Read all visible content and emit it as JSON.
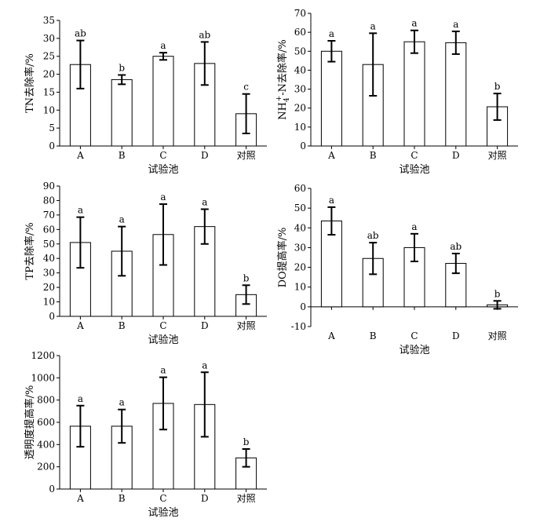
{
  "chart_data": [
    {
      "type": "bar",
      "title": "",
      "xlabel": "试验池",
      "ylabel": "TN去除率/%",
      "ylim": [
        0,
        35
      ],
      "yticks": [
        0,
        5,
        10,
        15,
        20,
        25,
        30,
        35
      ],
      "categories": [
        "A",
        "B",
        "C",
        "D",
        "对照"
      ],
      "values": [
        22.7,
        18.5,
        25.0,
        23.0,
        9.0
      ],
      "errors": [
        6.7,
        1.3,
        1.0,
        6.0,
        5.5
      ],
      "sig_labels": [
        "ab",
        "b",
        "a",
        "ab",
        "c"
      ]
    },
    {
      "type": "bar",
      "title": "",
      "xlabel": "试验池",
      "ylabel": "NH4+-N去除率/%",
      "ylabel_parts": {
        "base": "NH",
        "sub": "4",
        "sup": "+",
        "rest": "-N去除率/%"
      },
      "ylim": [
        0,
        70
      ],
      "yticks": [
        0,
        10,
        20,
        30,
        40,
        50,
        60,
        70
      ],
      "categories": [
        "A",
        "B",
        "C",
        "D",
        "对照"
      ],
      "values": [
        50.0,
        43.0,
        55.0,
        54.5,
        20.7
      ],
      "errors": [
        5.5,
        16.5,
        6.0,
        6.0,
        7.0
      ],
      "sig_labels": [
        "a",
        "a",
        "a",
        "a",
        "b"
      ]
    },
    {
      "type": "bar",
      "title": "",
      "xlabel": "试验池",
      "ylabel": "TP去除率/%",
      "ylim": [
        0,
        90
      ],
      "yticks": [
        0,
        10,
        20,
        30,
        40,
        50,
        60,
        70,
        80,
        90
      ],
      "categories": [
        "A",
        "B",
        "C",
        "D",
        "对照"
      ],
      "values": [
        51.0,
        45.0,
        56.5,
        62.0,
        15.0
      ],
      "errors": [
        17.5,
        17.0,
        21.0,
        12.0,
        6.5
      ],
      "sig_labels": [
        "a",
        "a",
        "a",
        "a",
        "b"
      ]
    },
    {
      "type": "bar",
      "title": "",
      "xlabel": "试验池",
      "ylabel": "DO提高率/%",
      "ylim": [
        -10,
        60
      ],
      "yticks": [
        -10,
        0,
        10,
        20,
        30,
        40,
        50,
        60
      ],
      "categories": [
        "A",
        "B",
        "C",
        "D",
        "对照"
      ],
      "values": [
        43.5,
        24.5,
        30.0,
        22.0,
        1.0
      ],
      "errors": [
        7.0,
        8.0,
        7.0,
        5.0,
        2.0
      ],
      "sig_labels": [
        "a",
        "ab",
        "a",
        "ab",
        "b"
      ]
    },
    {
      "type": "bar",
      "title": "",
      "xlabel": "试验池",
      "ylabel": "透明度提高率/%",
      "ylim": [
        0,
        1200
      ],
      "yticks": [
        0,
        200,
        400,
        600,
        800,
        1000,
        1200
      ],
      "categories": [
        "A",
        "B",
        "C",
        "D",
        "对照"
      ],
      "values": [
        565,
        565,
        770,
        760,
        280
      ],
      "errors": [
        185,
        150,
        235,
        290,
        80
      ],
      "sig_labels": [
        "a",
        "a",
        "a",
        "a",
        "b"
      ]
    }
  ]
}
